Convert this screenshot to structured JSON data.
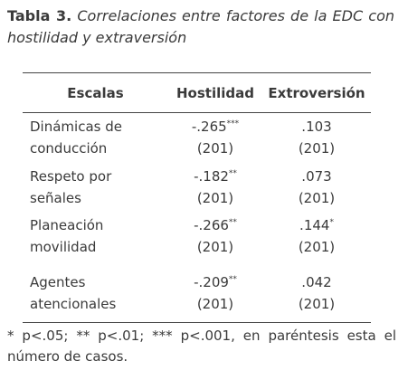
{
  "title": {
    "label": "Tabla 3.",
    "text": "Correlaciones entre factores de la EDC con hostilidad y extraversión"
  },
  "table": {
    "header": [
      "Escalas",
      "Hostilidad",
      "Extroversión"
    ],
    "rows": [
      {
        "label": [
          "Dinámicas de",
          "conducción"
        ],
        "hostilidad": {
          "value": "-.265",
          "sig": "***",
          "n": "(201)"
        },
        "extroversion": {
          "value": ".103",
          "sig": null,
          "n": "(201)"
        }
      },
      {
        "label": [
          "Respeto por",
          "señales"
        ],
        "hostilidad": {
          "value": "-.182",
          "sig": "**",
          "n": "(201)"
        },
        "extroversion": {
          "value": ".073",
          "sig": null,
          "n": "(201)"
        }
      },
      {
        "label": [
          "Planeación",
          "movilidad"
        ],
        "hostilidad": {
          "value": "-.266",
          "sig": "**",
          "n": "(201)"
        },
        "extroversion": {
          "value": ".144",
          "sig": "*",
          "n": "(201)"
        }
      },
      {
        "label": [
          "Agentes",
          "atencionales"
        ],
        "hostilidad": {
          "value": "-.209",
          "sig": "**",
          "n": "(201)"
        },
        "extroversion": {
          "value": ".042",
          "sig": null,
          "n": "(201)"
        }
      }
    ]
  },
  "footnote": "* p<.05; ** p<.01; *** p<.001, en paréntesis esta el número de casos."
}
